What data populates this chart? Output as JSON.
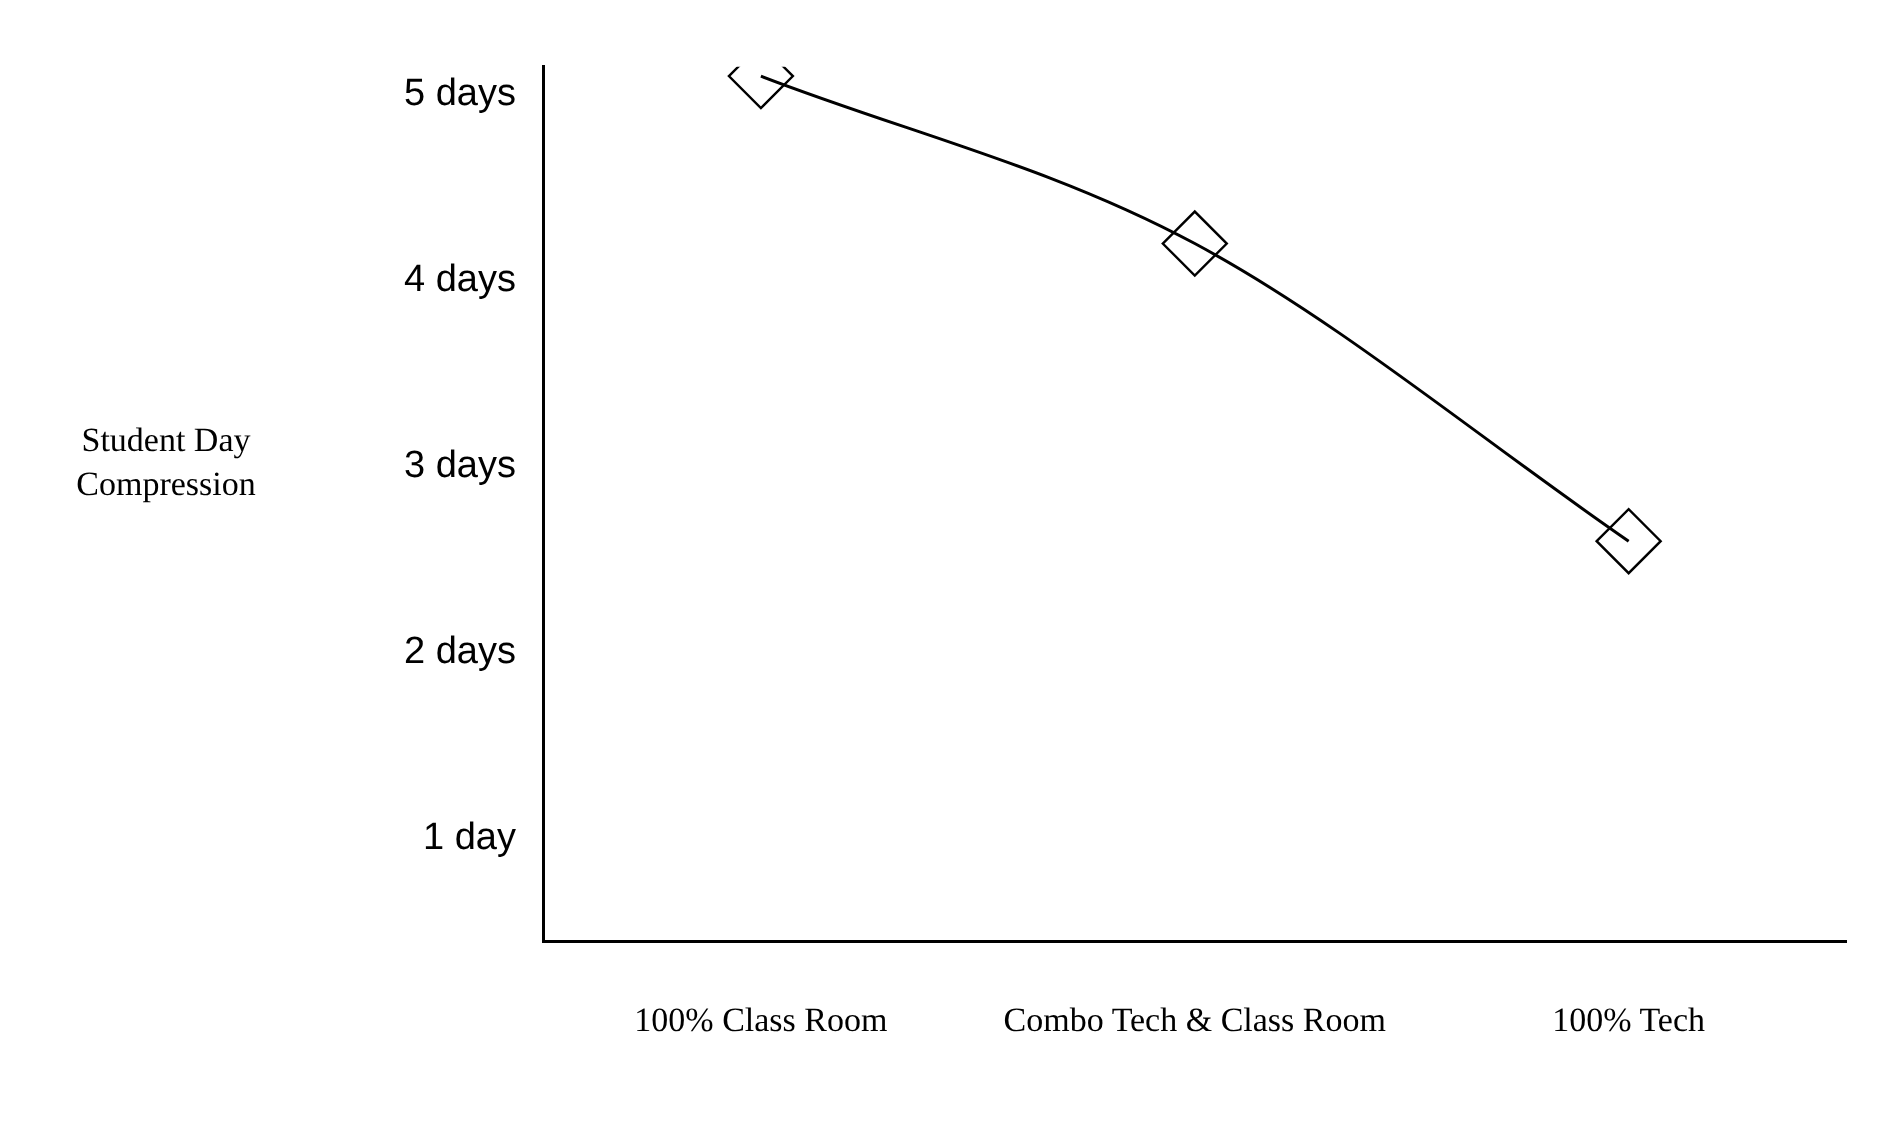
{
  "chart_data": {
    "type": "line",
    "ylabel": "Student Day Compression",
    "categories": [
      "100% Class Room",
      "Combo Tech & Class Room",
      "100% Tech"
    ],
    "series": [
      {
        "color": "#000000",
        "values": [
          5.1,
          4.2,
          2.6
        ]
      }
    ],
    "ylim": [
      0.45,
      5.15
    ],
    "yticks": [
      {
        "value": 1,
        "label": "1 day"
      },
      {
        "value": 2,
        "label": "2 days"
      },
      {
        "value": 3,
        "label": "3 days"
      },
      {
        "value": 4,
        "label": "4 days"
      },
      {
        "value": 5,
        "label": "5 days"
      }
    ],
    "grid": false,
    "legend": false,
    "marker": "diamond"
  }
}
